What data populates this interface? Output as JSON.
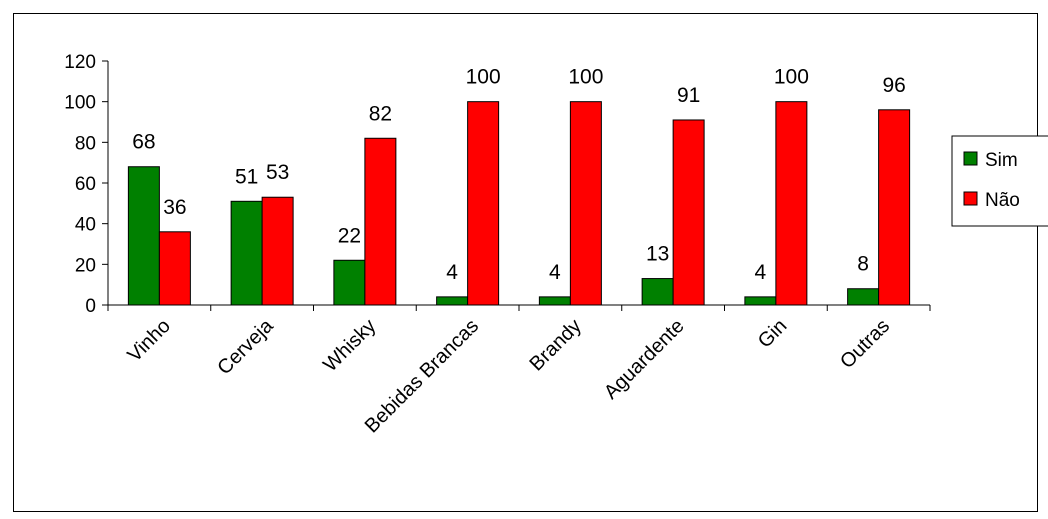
{
  "chart_data": {
    "type": "bar",
    "categories": [
      "Vinho",
      "Cerveja",
      "Whisky",
      "Bebidas Brancas",
      "Brandy",
      "Aguardente",
      "Gin",
      "Outras"
    ],
    "series": [
      {
        "name": "Sim",
        "values": [
          68,
          51,
          22,
          4,
          4,
          13,
          4,
          8
        ],
        "color": "#008000"
      },
      {
        "name": "Não",
        "values": [
          36,
          53,
          82,
          100,
          100,
          91,
          100,
          96
        ],
        "color": "#ff0000"
      }
    ],
    "title": "",
    "xlabel": "",
    "ylabel": "",
    "ylim": [
      0,
      120
    ],
    "yticks": [
      0,
      20,
      40,
      60,
      80,
      100,
      120
    ],
    "grid": false,
    "legend_position": "right"
  }
}
